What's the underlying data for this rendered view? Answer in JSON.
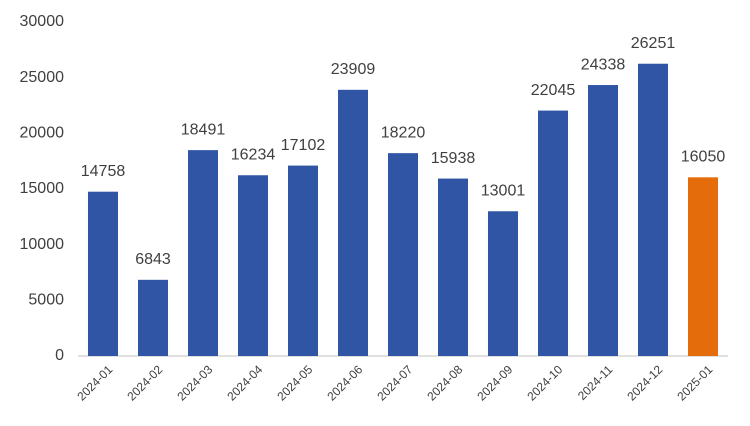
{
  "chart_data": {
    "type": "bar",
    "categories": [
      "2024-01",
      "2024-02",
      "2024-03",
      "2024-04",
      "2024-05",
      "2024-06",
      "2024-07",
      "2024-08",
      "2024-09",
      "2024-10",
      "2024-11",
      "2024-12",
      "2025-01"
    ],
    "values": [
      14758,
      6843,
      18491,
      16234,
      17102,
      23909,
      18220,
      15938,
      13001,
      22045,
      24338,
      26251,
      16050
    ],
    "colors": [
      "#2f55a4",
      "#2f55a4",
      "#2f55a4",
      "#2f55a4",
      "#2f55a4",
      "#2f55a4",
      "#2f55a4",
      "#2f55a4",
      "#2f55a4",
      "#2f55a4",
      "#2f55a4",
      "#2f55a4",
      "#e46c0a"
    ],
    "ylim": [
      0,
      30000
    ],
    "yticks": [
      0,
      5000,
      10000,
      15000,
      20000,
      25000,
      30000
    ],
    "grid": false
  }
}
